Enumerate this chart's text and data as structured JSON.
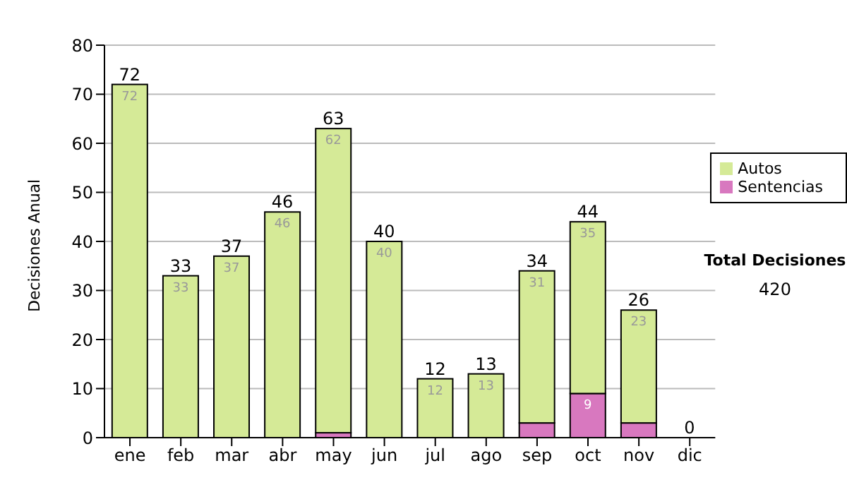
{
  "chart_data": {
    "type": "bar",
    "ylabel": "Decisiones Anual",
    "stacked": true,
    "categories": [
      "ene",
      "feb",
      "mar",
      "abr",
      "may",
      "jun",
      "jul",
      "ago",
      "sep",
      "oct",
      "nov",
      "dic"
    ],
    "series": [
      {
        "name": "Sentencias",
        "color": "#d878bf",
        "values": [
          0,
          0,
          0,
          0,
          1,
          0,
          0,
          0,
          3,
          9,
          3,
          0
        ],
        "value_labels": [
          null,
          null,
          null,
          null,
          null,
          null,
          null,
          null,
          null,
          "9",
          null,
          null
        ]
      },
      {
        "name": "Autos",
        "color": "#d5ea97",
        "values": [
          72,
          33,
          37,
          46,
          62,
          40,
          12,
          13,
          31,
          35,
          23,
          0
        ],
        "value_labels": [
          "72",
          "33",
          "37",
          "46",
          "62",
          "40",
          "12",
          "13",
          "31",
          "35",
          "23",
          null
        ]
      }
    ],
    "totals": [
      "72",
      "33",
      "37",
      "46",
      "63",
      "40",
      "12",
      "13",
      "34",
      "44",
      "26",
      "0"
    ],
    "ylim": [
      0,
      80
    ],
    "yticks": [
      0,
      10,
      20,
      30,
      40,
      50,
      60,
      70,
      80
    ],
    "grid": "y",
    "legend": "right",
    "annotations": [
      "Total Decisiones",
      "420"
    ]
  }
}
